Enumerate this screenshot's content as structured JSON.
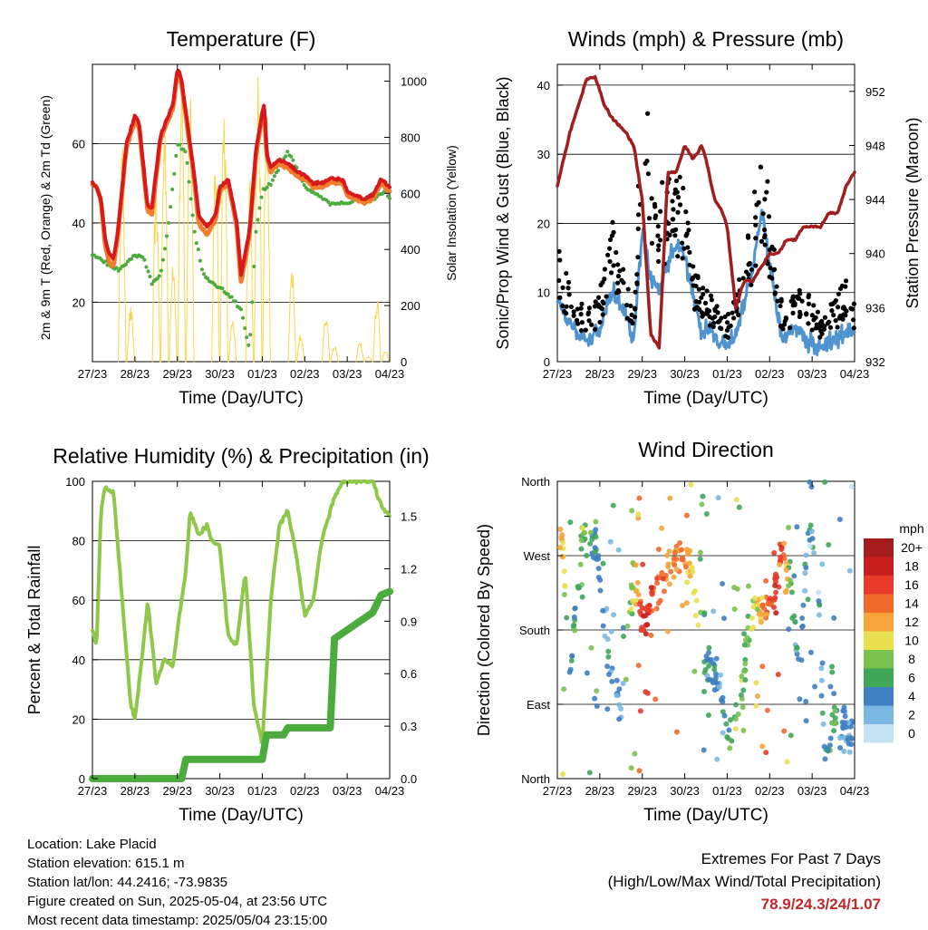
{
  "x_ticks": [
    "27/23",
    "28/23",
    "29/23",
    "30/23",
    "01/23",
    "02/23",
    "03/23",
    "04/23"
  ],
  "time_label": "Time (Day/UTC)",
  "panels": {
    "temperature": {
      "title": "Temperature (F)",
      "ylabel_left": "2m & 9m T (Red, Orange) & 2m Td (Green)",
      "ylabel_right": "Solar Insolation (Yellow)",
      "left_ticks": [
        "20",
        "40",
        "60"
      ],
      "right_ticks": [
        "0",
        "200",
        "400",
        "600",
        "800",
        "1000"
      ]
    },
    "winds": {
      "title": "Winds (mph) & Pressure (mb)",
      "ylabel_left": "Sonic/Prop Wind & Gust (Blue, Black)",
      "ylabel_right": "Station Pressure (Maroon)",
      "left_ticks": [
        "0",
        "10",
        "20",
        "30",
        "40"
      ],
      "right_ticks": [
        "932",
        "936",
        "940",
        "944",
        "948",
        "952"
      ]
    },
    "humidity": {
      "title": "Relative Humidity (%) & Precipitation (in)",
      "ylabel_left": "Percent & Total Rainfall",
      "left_ticks": [
        "0",
        "20",
        "40",
        "60",
        "80",
        "100"
      ],
      "right_ticks": [
        "0.0",
        "0.3",
        "0.6",
        "0.9",
        "1.2",
        "1.5"
      ]
    },
    "direction": {
      "title": "Wind Direction",
      "ylabel_left": "Direction (Colored By Speed)",
      "left_ticks": [
        "North",
        "East",
        "South",
        "West",
        "North"
      ],
      "legend_title": "mph",
      "legend_labels": [
        "20+",
        "18",
        "16",
        "14",
        "12",
        "10",
        "8",
        "6",
        "4",
        "2",
        "0"
      ],
      "legend_colors": [
        "#a51c1c",
        "#c81e1e",
        "#e8392a",
        "#f06a2c",
        "#f5a43a",
        "#e8e04f",
        "#79c24e",
        "#3fa65a",
        "#3e80c2",
        "#7ab8e3",
        "#c3e3f5"
      ]
    }
  },
  "colors": {
    "temp_2m": "#d7191c",
    "temp_9m": "#f27d2e",
    "dewpoint": "#4bab3d",
    "solar": "#f7d64a",
    "gust": "#000000",
    "wind": "#4f94d0",
    "pressure": "#a21d1d",
    "humidity": "#8fc74a",
    "precip": "#4bab3d",
    "extremes": "#c0282d"
  },
  "info": {
    "location": "Location: Lake Placid",
    "elevation": "Station elevation: 615.1 m",
    "latlon": "Station lat/lon: 44.2416; -73.9835",
    "created": "Figure created on Sun, 2025-05-04, at 23:56 UTC",
    "recent": "Most recent data timestamp: 2025/05/04 23:15:00"
  },
  "extremes": {
    "title": "Extremes For Past 7 Days",
    "subtitle": "(High/Low/Max Wind/Total Precipitation)",
    "values": "78.9/24.3/24/1.07"
  },
  "chart_data": [
    {
      "type": "line",
      "title": "Temperature (F)",
      "x_unit": "days since 27/23 00 UTC",
      "xlim": [
        0,
        7
      ],
      "ylim": [
        5,
        80
      ],
      "y2lim": [
        0,
        1060
      ],
      "series": [
        {
          "name": "2m T",
          "axis": "left",
          "x": [
            0,
            0.1,
            0.2,
            0.3,
            0.4,
            0.5,
            0.6,
            0.8,
            1.0,
            1.1,
            1.3,
            1.4,
            1.6,
            1.9,
            2.0,
            2.1,
            2.2,
            2.4,
            2.5,
            2.7,
            2.9,
            3.0,
            3.2,
            3.4,
            3.5,
            3.7,
            3.85,
            4.0,
            4.05,
            4.1,
            4.2,
            4.4,
            4.6,
            4.8,
            5.0,
            5.2,
            5.4,
            5.6,
            5.9,
            6.0,
            6.2,
            6.4,
            6.6,
            6.8,
            7.0
          ],
          "y": [
            50,
            49,
            46,
            36,
            32,
            31,
            38,
            60,
            67,
            65,
            44,
            44,
            62,
            70,
            79,
            76,
            68,
            52,
            42,
            39,
            42,
            49,
            51,
            40,
            27,
            38,
            58,
            68,
            70,
            58,
            54,
            56,
            55,
            53,
            52,
            50,
            50,
            51,
            51,
            48,
            47,
            46,
            47,
            51,
            49
          ]
        },
        {
          "name": "9m T",
          "axis": "left",
          "x": [
            0,
            0.1,
            0.2,
            0.3,
            0.4,
            0.5,
            0.6,
            0.8,
            1.0,
            1.1,
            1.3,
            1.4,
            1.6,
            1.9,
            2.0,
            2.1,
            2.2,
            2.4,
            2.5,
            2.7,
            2.9,
            3.0,
            3.2,
            3.4,
            3.5,
            3.7,
            3.85,
            4.0,
            4.05,
            4.1,
            4.2,
            4.4,
            4.6,
            4.8,
            5.0,
            5.2,
            5.4,
            5.6,
            5.9,
            6.0,
            6.2,
            6.4,
            6.6,
            6.8,
            7.0
          ],
          "y": [
            50,
            49,
            46,
            34,
            30,
            29,
            37,
            59,
            66,
            64,
            43,
            42,
            61,
            69,
            78,
            75,
            67,
            51,
            40,
            37,
            41,
            48,
            50,
            39,
            25,
            37,
            57,
            67,
            69,
            57,
            53,
            55,
            54,
            52,
            51,
            49,
            49,
            50,
            50,
            47,
            46,
            45,
            46,
            50,
            48
          ]
        },
        {
          "name": "2m Td",
          "axis": "left",
          "x": [
            0,
            0.3,
            0.6,
            0.8,
            1.0,
            1.2,
            1.4,
            1.6,
            1.8,
            2.0,
            2.2,
            2.4,
            2.6,
            2.9,
            3.2,
            3.5,
            3.7,
            3.85,
            4.0,
            4.2,
            4.4,
            4.6,
            4.8,
            5.0,
            5.3,
            5.6,
            6.0,
            6.3,
            6.6,
            6.9,
            7.0
          ],
          "y": [
            32,
            30,
            28,
            30,
            32,
            31,
            25,
            27,
            40,
            60,
            58,
            38,
            27,
            24,
            22,
            18,
            8,
            38,
            48,
            50,
            54,
            58,
            54,
            49,
            47,
            45,
            45,
            46,
            46,
            48,
            46
          ]
        },
        {
          "name": "Solar Insolation",
          "axis": "right",
          "x": [
            0.5,
            0.7,
            0.9,
            1.1,
            1.3,
            1.5,
            1.7,
            1.9,
            2.1,
            2.3,
            2.5,
            2.7,
            2.9,
            3.1,
            3.3,
            3.5,
            3.7,
            3.9,
            4.1,
            4.3,
            4.5,
            4.7,
            4.9,
            5.1,
            5.3,
            5.5,
            5.7,
            5.9,
            6.1,
            6.3,
            6.5,
            6.7,
            6.9
          ],
          "y": [
            0,
            800,
            200,
            0,
            0,
            650,
            900,
            400,
            980,
            1050,
            0,
            0,
            750,
            950,
            150,
            0,
            700,
            1050,
            950,
            0,
            0,
            350,
            100,
            0,
            0,
            180,
            60,
            0,
            0,
            80,
            20,
            240,
            40
          ]
        }
      ]
    },
    {
      "type": "scatter",
      "title": "Winds (mph) & Pressure (mb)",
      "x_unit": "days since 27/23 00 UTC",
      "xlim": [
        0,
        7
      ],
      "ylim": [
        0,
        43
      ],
      "y2lim": [
        932,
        954
      ],
      "series": [
        {
          "name": "Station Pressure",
          "axis": "right",
          "x": [
            0,
            0.3,
            0.5,
            0.7,
            0.9,
            1.1,
            1.3,
            1.6,
            1.8,
            2.0,
            2.2,
            2.4,
            2.6,
            2.8,
            3.0,
            3.2,
            3.4,
            3.5,
            3.7,
            3.9,
            4.0,
            4.2,
            4.4,
            4.6,
            4.8,
            5.0,
            5.2,
            5.4,
            5.6,
            5.8,
            6.0,
            6.2,
            6.4,
            6.6,
            6.8,
            7.0
          ],
          "y": [
            945,
            949,
            951,
            953,
            953,
            951,
            950,
            949,
            948,
            944,
            934,
            933,
            946,
            946,
            948,
            947,
            948,
            947,
            944,
            943,
            942,
            936,
            938,
            938,
            939,
            940,
            940,
            941,
            941,
            942,
            942,
            942,
            943,
            943,
            945,
            946
          ]
        },
        {
          "name": "Wind",
          "axis": "left",
          "x": [
            0,
            0.2,
            0.5,
            0.8,
            1.0,
            1.3,
            1.6,
            1.8,
            2.0,
            2.2,
            2.4,
            2.6,
            2.8,
            3.0,
            3.2,
            3.4,
            3.6,
            3.8,
            4.0,
            4.2,
            4.4,
            4.6,
            4.8,
            5.0,
            5.3,
            5.6,
            5.9,
            6.2,
            6.5,
            6.8,
            7.0
          ],
          "y": [
            9,
            6,
            4,
            3,
            5,
            10,
            7,
            3,
            19,
            12,
            10,
            14,
            17,
            15,
            10,
            4,
            5,
            3,
            2,
            4,
            9,
            13,
            22,
            14,
            3,
            5,
            3,
            2,
            3,
            4,
            5
          ]
        },
        {
          "name": "Gust",
          "axis": "left",
          "x": [
            0,
            0.2,
            0.5,
            0.8,
            1.0,
            1.3,
            1.6,
            1.8,
            2.0,
            2.2,
            2.4,
            2.6,
            2.8,
            3.0,
            3.2,
            3.4,
            3.6,
            3.8,
            4.0,
            4.2,
            4.4,
            4.6,
            4.8,
            5.0,
            5.3,
            5.6,
            5.9,
            6.2,
            6.5,
            6.8,
            7.0
          ],
          "y": [
            16,
            12,
            8,
            7,
            10,
            19,
            12,
            8,
            38,
            30,
            24,
            24,
            28,
            22,
            14,
            10,
            9,
            7,
            6,
            9,
            14,
            20,
            31,
            22,
            7,
            10,
            9,
            6,
            8,
            11,
            8
          ]
        }
      ]
    },
    {
      "type": "line",
      "title": "Relative Humidity (%) & Precipitation (in)",
      "x_unit": "days since 27/23 00 UTC",
      "xlim": [
        0,
        7
      ],
      "ylim": [
        0,
        100
      ],
      "y2lim": [
        0,
        1.7
      ],
      "series": [
        {
          "name": "Relative Humidity",
          "axis": "left",
          "x": [
            0,
            0.1,
            0.2,
            0.3,
            0.5,
            0.7,
            0.9,
            1.0,
            1.2,
            1.3,
            1.5,
            1.7,
            1.9,
            2.0,
            2.2,
            2.3,
            2.5,
            2.7,
            2.8,
            3.0,
            3.2,
            3.4,
            3.6,
            3.8,
            4.0,
            4.2,
            4.4,
            4.6,
            4.8,
            5.0,
            5.2,
            5.4,
            5.7,
            5.9,
            6.0,
            6.3,
            6.6,
            6.8,
            7.0
          ],
          "y": [
            50,
            45,
            90,
            98,
            96,
            60,
            25,
            20,
            45,
            60,
            32,
            40,
            38,
            50,
            70,
            90,
            82,
            85,
            80,
            78,
            48,
            45,
            70,
            25,
            12,
            60,
            85,
            90,
            75,
            55,
            60,
            80,
            95,
            100,
            100,
            100,
            100,
            92,
            88
          ]
        },
        {
          "name": "Total Precipitation",
          "axis": "right",
          "x": [
            0,
            2.1,
            2.2,
            4.0,
            4.1,
            4.5,
            4.6,
            5.6,
            5.7,
            6.0,
            6.6,
            6.8,
            7.0
          ],
          "y": [
            0,
            0,
            0.11,
            0.11,
            0.25,
            0.25,
            0.29,
            0.29,
            0.8,
            0.85,
            0.95,
            1.05,
            1.07
          ]
        }
      ]
    },
    {
      "type": "scatter",
      "title": "Wind Direction",
      "x_unit": "days since 27/23 00 UTC",
      "xlim": [
        0,
        7
      ],
      "ylim": [
        0,
        360
      ],
      "series": [
        {
          "name": "Direction",
          "x": [
            0.1,
            0.3,
            0.6,
            0.9,
            1.2,
            1.5,
            1.8,
            2.0,
            2.1,
            2.3,
            2.5,
            2.7,
            2.9,
            3.1,
            3.5,
            3.8,
            4.0,
            4.3,
            4.5,
            4.7,
            4.9,
            5.1,
            5.3,
            5.5,
            5.7,
            5.9,
            6.1,
            6.3,
            6.5,
            6.8
          ],
          "y": [
            300,
            135,
            300,
            280,
            150,
            80,
            250,
            185,
            195,
            240,
            250,
            265,
            270,
            265,
            140,
            120,
            60,
            80,
            180,
            210,
            200,
            230,
            270,
            230,
            120,
            300,
            280,
            20,
            70,
            60
          ],
          "speed": [
            12,
            4,
            8,
            5,
            4,
            3,
            9,
            16,
            18,
            14,
            13,
            12,
            14,
            12,
            5,
            3,
            6,
            8,
            7,
            10,
            14,
            16,
            15,
            5,
            3,
            4,
            3,
            4,
            6,
            3
          ]
        }
      ]
    }
  ]
}
